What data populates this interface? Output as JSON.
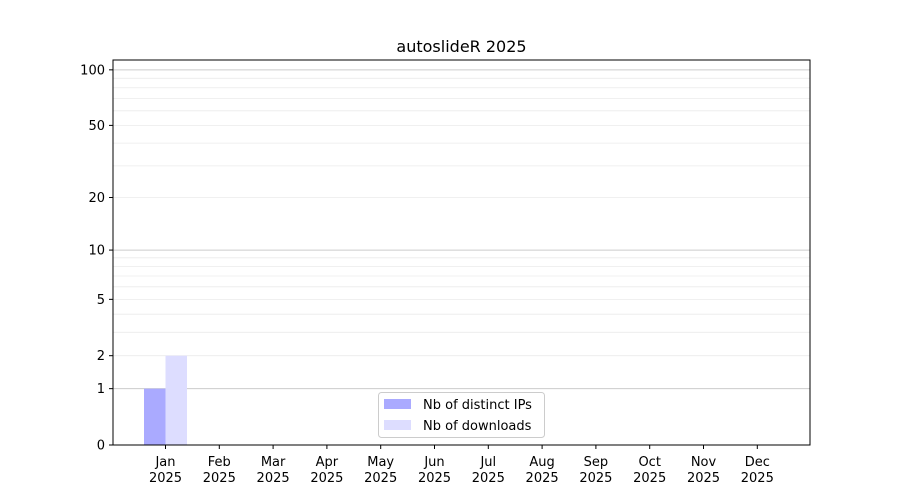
{
  "chart_data": {
    "type": "bar",
    "title": "autoslideR 2025",
    "xlabel": "",
    "ylabel": "",
    "yscale": "symlog (log10(1+y))",
    "ylim": [
      0,
      113
    ],
    "grid": "horizontal, major and minor",
    "legend_position": "lower-center",
    "categories": [
      "Jan\n2025",
      "Feb\n2025",
      "Mar\n2025",
      "Apr\n2025",
      "May\n2025",
      "Jun\n2025",
      "Jul\n2025",
      "Aug\n2025",
      "Sep\n2025",
      "Oct\n2025",
      "Nov\n2025",
      "Dec\n2025"
    ],
    "yticks": [
      0,
      1,
      2,
      5,
      10,
      20,
      50,
      100
    ],
    "series": [
      {
        "name": "Nb of distinct IPs",
        "color": "#aaaaff",
        "values": [
          1,
          0,
          0,
          0,
          0,
          0,
          0,
          0,
          0,
          0,
          0,
          0
        ]
      },
      {
        "name": "Nb of downloads",
        "color": "#ddddff",
        "values": [
          2,
          0,
          0,
          0,
          0,
          0,
          0,
          0,
          0,
          0,
          0,
          0
        ]
      }
    ]
  }
}
